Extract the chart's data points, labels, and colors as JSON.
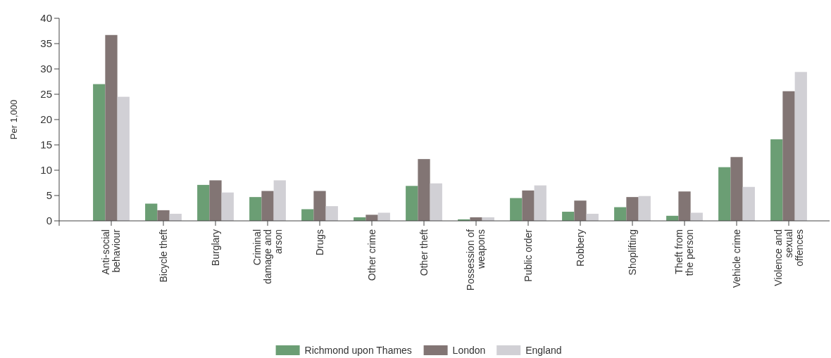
{
  "chart_data": {
    "type": "bar",
    "ylabel": "Per 1,000",
    "categories": [
      "Anti-social behaviour",
      "Bicycle theft",
      "Burglary",
      "Criminal damage and arson",
      "Drugs",
      "Other crime",
      "Other theft",
      "Possession of weapons",
      "Public order",
      "Robbery",
      "Shoplifting",
      "Theft from the person",
      "Vehicle crime",
      "Violence and sexual offences"
    ],
    "series": [
      {
        "name": "Richmond upon Thames",
        "color": "#6b9e74",
        "values": [
          27,
          3.4,
          7.1,
          4.7,
          2.3,
          0.7,
          6.9,
          0.3,
          4.5,
          1.8,
          2.7,
          1,
          10.6,
          16.1
        ]
      },
      {
        "name": "London",
        "color": "#827574",
        "values": [
          36.7,
          2.1,
          8,
          5.9,
          5.9,
          1.2,
          12.2,
          0.7,
          6,
          4,
          4.7,
          5.8,
          12.6,
          25.6
        ]
      },
      {
        "name": "England",
        "color": "#d1d0d5",
        "values": [
          24.5,
          1.4,
          5.6,
          8,
          2.9,
          1.6,
          7.4,
          0.7,
          7,
          1.4,
          4.9,
          1.6,
          6.7,
          29.4
        ]
      }
    ],
    "ylim": [
      0,
      40
    ],
    "yticks": [
      0,
      5,
      10,
      15,
      20,
      25,
      30,
      35,
      40
    ],
    "grid": false,
    "legend": "bottom"
  }
}
